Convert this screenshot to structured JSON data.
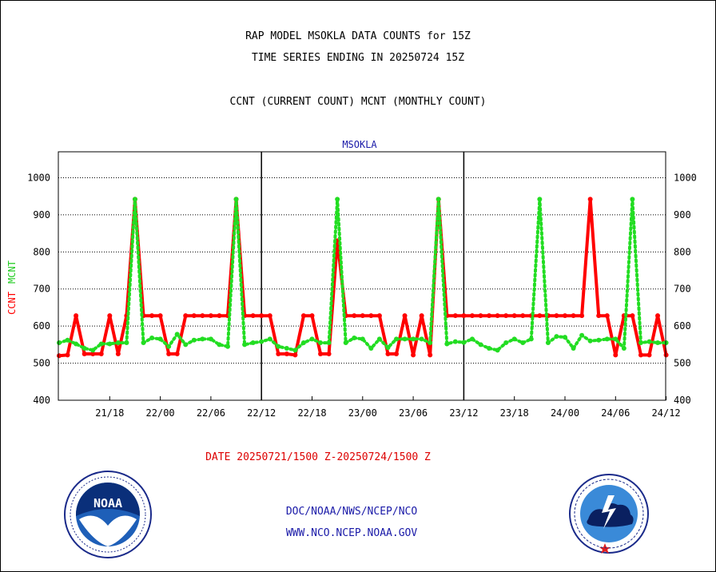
{
  "titles": {
    "line1": "RAP MODEL MSOKLA DATA COUNTS for 15Z",
    "line2": "TIME SERIES ENDING IN 20250724 15Z",
    "line3": "CCNT (CURRENT COUNT) MCNT (MONTHLY COUNT)"
  },
  "footer": {
    "date_range": "DATE 20250721/1500 Z-20250724/1500 Z",
    "org": "DOC/NOAA/NWS/NCEP/NCO",
    "url": "WWW.NCO.NCEP.NOAA.GOV"
  },
  "logos": {
    "noaa": {
      "label": "NOAA",
      "ring_text": "NATIONAL OCEANIC AND ATMOSPHERIC ADMINISTRATION · U.S. DEPARTMENT OF COMMERCE"
    },
    "nws": {
      "ring_text": "NATIONAL WEATHER SERVICE"
    }
  },
  "colors": {
    "ccnt": "#ff0000",
    "mcnt": "#22dd22",
    "accent_text": "#1a1aa8",
    "date_text": "#dd0000"
  },
  "chart_data": {
    "type": "line",
    "title": "MSOKLA",
    "ylabel": "CCNT  MCNT",
    "ylim": [
      400,
      1070
    ],
    "yticks": [
      400,
      500,
      600,
      700,
      800,
      900,
      1000
    ],
    "x_start_hour": -3,
    "x_end_hour": 63,
    "xticks": [
      {
        "hour": 3,
        "label": "21/18"
      },
      {
        "hour": 9,
        "label": "22/00"
      },
      {
        "hour": 15,
        "label": "22/06"
      },
      {
        "hour": 21,
        "label": "22/12"
      },
      {
        "hour": 27,
        "label": "22/18"
      },
      {
        "hour": 33,
        "label": "23/00"
      },
      {
        "hour": 39,
        "label": "23/06"
      },
      {
        "hour": 45,
        "label": "23/12"
      },
      {
        "hour": 51,
        "label": "23/18"
      },
      {
        "hour": 57,
        "label": "24/00"
      },
      {
        "hour": 63,
        "label": "24/06"
      },
      {
        "hour": 69,
        "label": "24/12"
      }
    ],
    "day_lines_hours": [
      21,
      45,
      69
    ],
    "grid": true,
    "series": [
      {
        "name": "CCNT",
        "color": "#ff0000",
        "x": [
          0,
          1,
          2,
          3,
          4,
          5,
          6,
          7,
          8,
          9,
          10,
          11,
          12,
          13,
          14,
          15,
          16,
          17,
          18,
          19,
          20,
          21,
          22,
          23,
          24,
          25,
          26,
          27,
          28,
          29,
          30,
          31,
          32,
          33,
          34,
          35,
          36,
          37,
          38,
          39,
          40,
          41,
          42,
          43,
          44,
          45,
          46,
          47,
          48,
          49,
          50,
          51,
          52,
          53,
          54,
          55,
          56,
          57,
          58,
          59,
          60,
          61,
          62,
          63,
          64,
          65,
          66,
          67,
          68,
          69,
          70,
          71,
          72
        ],
        "values": [
          520,
          522,
          628,
          525,
          525,
          525,
          628,
          525,
          628,
          942,
          628,
          628,
          628,
          525,
          525,
          628,
          628,
          628,
          628,
          628,
          628,
          942,
          628,
          628,
          628,
          628,
          525,
          525,
          522,
          628,
          628,
          525,
          525,
          830,
          628,
          628,
          628,
          628,
          628,
          525,
          525,
          628,
          522,
          628,
          522,
          942,
          628,
          628,
          628,
          628,
          628,
          628,
          628,
          628,
          628,
          628,
          628,
          628,
          628,
          628,
          628,
          628,
          628,
          942,
          628,
          628,
          522,
          628,
          628,
          522,
          522,
          628,
          522
        ]
      },
      {
        "name": "MCNT",
        "color": "#22dd22",
        "x": [
          0,
          1,
          2,
          3,
          4,
          5,
          6,
          7,
          8,
          9,
          10,
          11,
          12,
          13,
          14,
          15,
          16,
          17,
          18,
          19,
          20,
          21,
          22,
          23,
          24,
          25,
          26,
          27,
          28,
          29,
          30,
          31,
          32,
          33,
          34,
          35,
          36,
          37,
          38,
          39,
          40,
          41,
          42,
          43,
          44,
          45,
          46,
          47,
          48,
          49,
          50,
          51,
          52,
          53,
          54,
          55,
          56,
          57,
          58,
          59,
          60,
          61,
          62,
          63,
          64,
          65,
          66,
          67,
          68,
          69,
          70,
          71,
          72
        ],
        "values": [
          555,
          562,
          552,
          540,
          535,
          552,
          552,
          555,
          555,
          942,
          555,
          568,
          565,
          545,
          578,
          550,
          562,
          565,
          565,
          550,
          545,
          942,
          550,
          555,
          558,
          565,
          545,
          540,
          535,
          555,
          565,
          555,
          555,
          942,
          555,
          568,
          565,
          540,
          565,
          542,
          565,
          565,
          565,
          565,
          555,
          942,
          552,
          558,
          556,
          565,
          550,
          540,
          535,
          555,
          565,
          555,
          565,
          942,
          555,
          572,
          570,
          540,
          575,
          560,
          562,
          565,
          565,
          540,
          942,
          555,
          558,
          555,
          555
        ]
      }
    ]
  }
}
